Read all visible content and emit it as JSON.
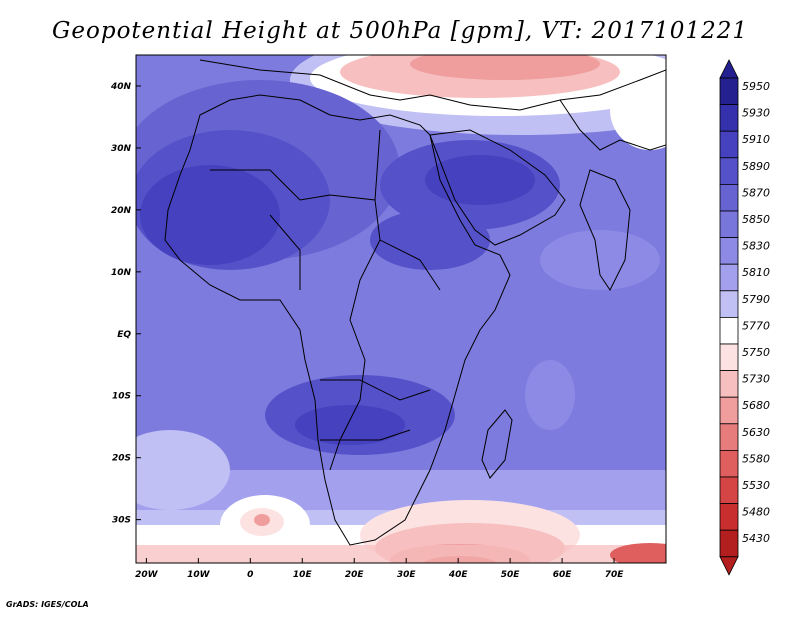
{
  "title": "Geopotential Height at 500hPa [gpm], VT: 2017101221",
  "credit": "GrADS: IGES/COLA",
  "map": {
    "lon_labels": [
      "20W",
      "10W",
      "0",
      "10E",
      "20E",
      "30E",
      "40E",
      "50E",
      "60E",
      "70E"
    ],
    "lat_labels": [
      "40N",
      "30N",
      "20N",
      "10N",
      "EQ",
      "10S",
      "20S",
      "30S"
    ],
    "lon_values": [
      -20,
      -10,
      0,
      10,
      20,
      30,
      40,
      50,
      60,
      70
    ],
    "lat_values": [
      40,
      30,
      20,
      10,
      0,
      -10,
      -20,
      -30
    ],
    "lon_range": [
      -22,
      80
    ],
    "lat_range": [
      -37,
      45
    ]
  },
  "colorbar": {
    "labels": [
      "5950",
      "5930",
      "5910",
      "5890",
      "5870",
      "5850",
      "5830",
      "5810",
      "5790",
      "5770",
      "5750",
      "5730",
      "5680",
      "5630",
      "5580",
      "5530",
      "5480",
      "5430"
    ],
    "colors": [
      "#24208f",
      "#3531ad",
      "#4541bf",
      "#5551c9",
      "#6764d2",
      "#7875db",
      "#8c8ae4",
      "#a3a1ee",
      "#c0c0f4",
      "#ffffff",
      "#fde2e2",
      "#f7bfbf",
      "#ef9d9d",
      "#e67c7c",
      "#df5e5e",
      "#d64545",
      "#c82e2e",
      "#b31f1f"
    ]
  }
}
